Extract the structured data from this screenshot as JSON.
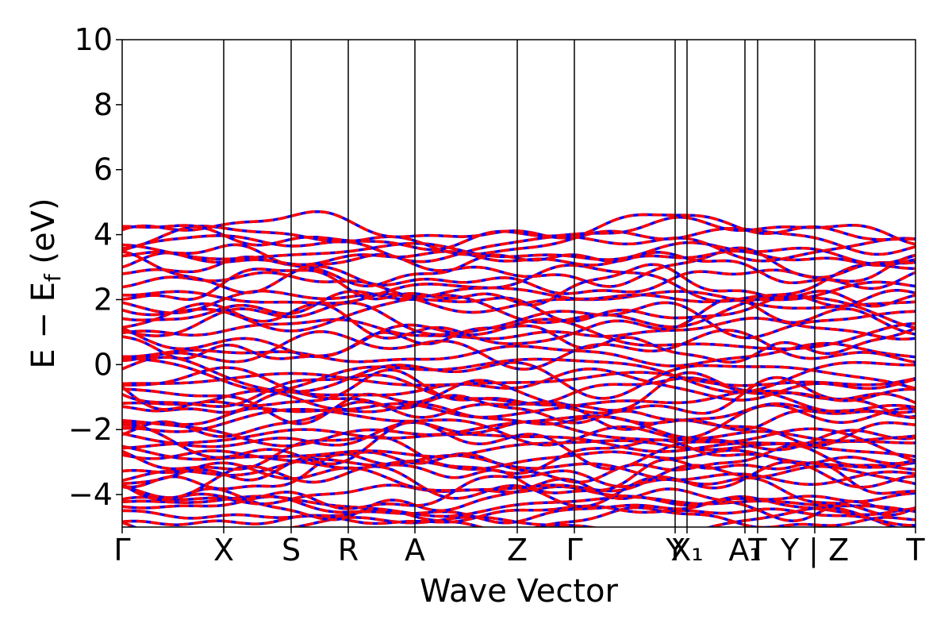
{
  "chart_data": {
    "type": "line",
    "title": "",
    "xlabel": "Wave Vector",
    "ylabel_parts": {
      "pre": "E − E",
      "sub": "f",
      "post": " (eV)"
    },
    "ylim": [
      -5,
      10
    ],
    "yticks": [
      -4,
      -2,
      0,
      2,
      4,
      6,
      8,
      10
    ],
    "ytick_labels": [
      "−4",
      "−2",
      "0",
      "2",
      "4",
      "6",
      "8",
      "10"
    ],
    "grid": false,
    "legend": "none",
    "kpath_ticks": [
      {
        "label": "Γ",
        "x": 0.0
      },
      {
        "label": "X",
        "x": 0.128
      },
      {
        "label": "S",
        "x": 0.213
      },
      {
        "label": "R",
        "x": 0.285
      },
      {
        "label": "A",
        "x": 0.369
      },
      {
        "label": "Z",
        "x": 0.498
      },
      {
        "label": "Γ",
        "x": 0.57
      },
      {
        "label": "Y",
        "x": 0.697
      },
      {
        "label": "X₁",
        "x": 0.712
      },
      {
        "label": "A₁",
        "x": 0.785
      },
      {
        "label": "T",
        "x": 0.801
      },
      {
        "label": "Y | Z",
        "x": 0.873
      },
      {
        "label": "T",
        "x": 1.0
      }
    ],
    "vertical_lines_x": [
      0.128,
      0.213,
      0.285,
      0.369,
      0.498,
      0.57,
      0.697,
      0.712,
      0.785,
      0.801,
      0.873
    ],
    "series": [
      {
        "style": "solid",
        "color": "#0000ff"
      },
      {
        "style": "dashed",
        "color": "#ff0000"
      }
    ],
    "bands": {
      "conduction_range": [
        0.2,
        4.3
      ],
      "valence_range": [
        -5.0,
        -0.1
      ],
      "n_conduction": 22,
      "n_valence": 32
    }
  }
}
